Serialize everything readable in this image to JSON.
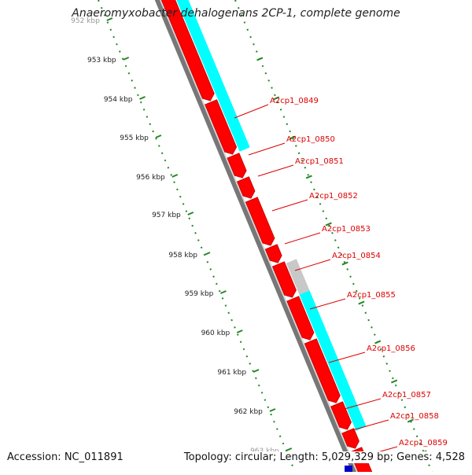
{
  "title": "Anaeromyxobacter dehalogenans 2CP-1, complete genome",
  "accession": "Accession: NC_011891",
  "topology": "Topology: circular; Length: 5,029,329 bp; Genes: 4,528",
  "colors": {
    "cds_forward": "#ff0000",
    "cds_dark": "#cc0000",
    "cyan_track": "#00ffff",
    "gray_track": "#c8c8c8",
    "backbone": "#888888",
    "ticks": "#228822",
    "label": "#dd0000",
    "blue_feature": "#0000cc"
  },
  "ticks": [
    "952 kbp",
    "953 kbp",
    "954 kbp",
    "955 kbp",
    "956 kbp",
    "957 kbp",
    "958 kbp",
    "959 kbp",
    "960 kbp",
    "961 kbp",
    "962 kbp",
    "963 kbp"
  ],
  "genes": [
    "A2cp1_0849",
    "A2cp1_0850",
    "A2cp1_0851",
    "A2cp1_0852",
    "A2cp1_0853",
    "A2cp1_0854",
    "A2cp1_0855",
    "A2cp1_0856",
    "A2cp1_0857",
    "A2cp1_0858",
    "A2cp1_0859"
  ]
}
